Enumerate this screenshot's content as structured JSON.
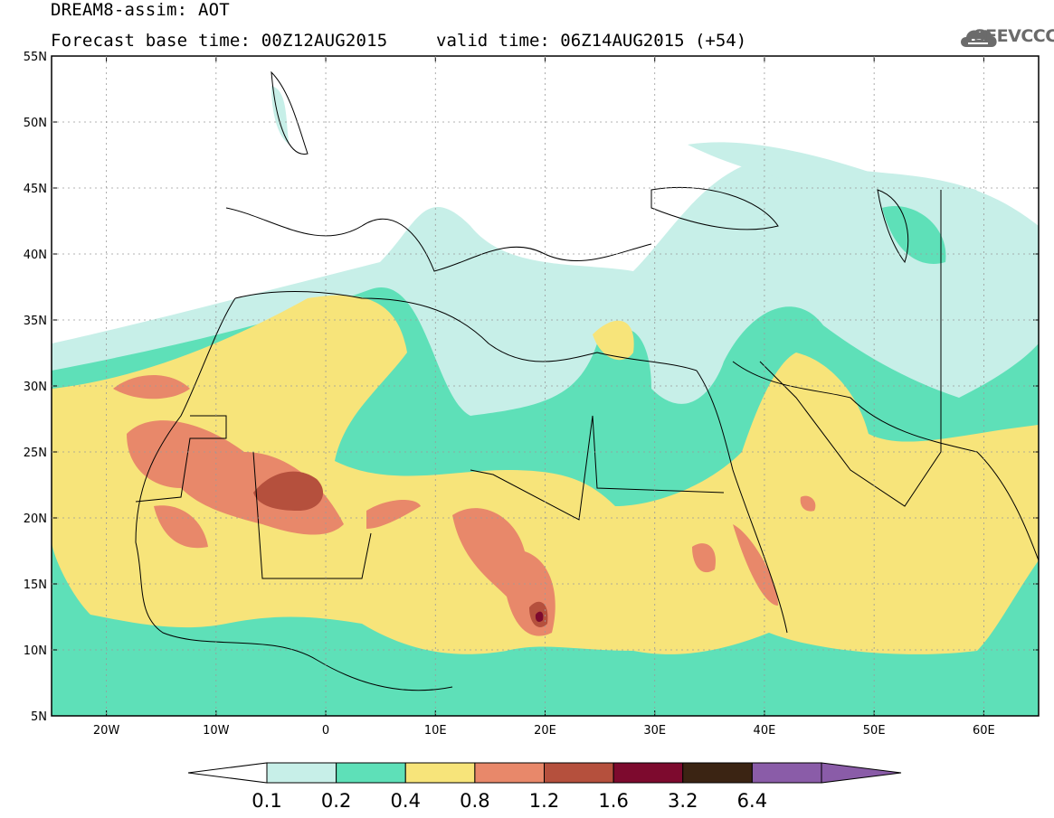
{
  "header": {
    "title": "DREAM8-assim: AOT",
    "base_time": "Forecast base time: 00Z12AUG2015",
    "valid_time": "valid time: 06Z14AUG2015 (+54)",
    "logo_text": "SEEVCCC"
  },
  "map": {
    "lat_labels": [
      "55N",
      "50N",
      "45N",
      "40N",
      "35N",
      "30N",
      "25N",
      "20N",
      "15N",
      "10N",
      "5N"
    ],
    "lon_labels": [
      "20W",
      "10W",
      "0",
      "10E",
      "20E",
      "30E",
      "40E",
      "50E",
      "60E"
    ],
    "lon_range": [
      -25,
      65
    ],
    "lat_range": [
      5,
      55
    ]
  },
  "colorbar": {
    "labels": [
      "0.1",
      "0.2",
      "0.4",
      "0.8",
      "1.2",
      "1.6",
      "3.2",
      "6.4"
    ],
    "colors": [
      "#ffffff",
      "#c7efe8",
      "#5ee0b8",
      "#f7e47a",
      "#e8886a",
      "#b5503d",
      "#7d0a2e",
      "#3b2413",
      "#8a5ca8"
    ]
  }
}
